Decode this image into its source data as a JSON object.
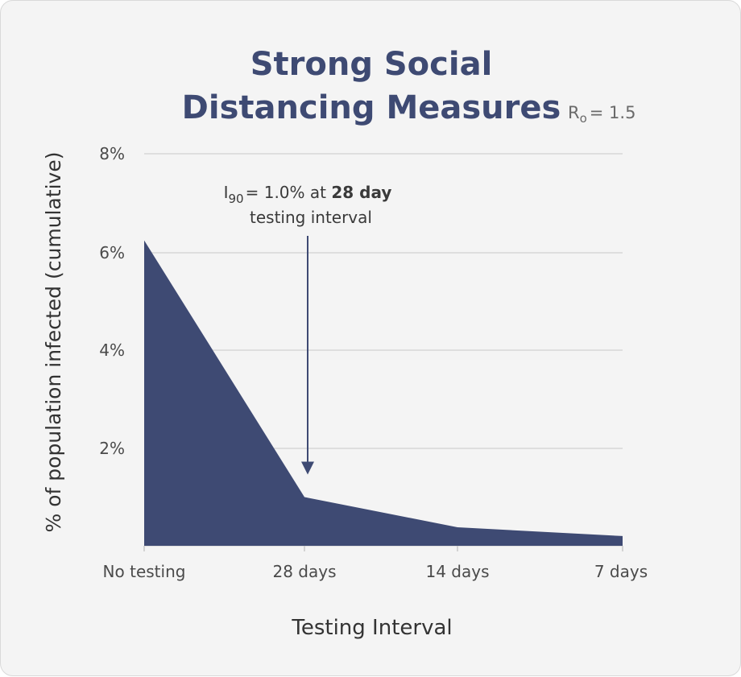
{
  "chart_data": {
    "type": "area",
    "title_line1": "Strong Social",
    "title_line2": "Distancing Measures",
    "r0_symbol": "R",
    "r0_sub": "o",
    "r0_value": "= 1.5",
    "xlabel": "Testing Interval",
    "ylabel": "% of population infected (cumulative)",
    "categories": [
      "No testing",
      "28 days",
      "14 days",
      "7 days"
    ],
    "values": [
      6.25,
      1.0,
      0.38,
      0.2
    ],
    "ylim": [
      0,
      8
    ],
    "yticks": [
      {
        "value": 2,
        "label": "2%"
      },
      {
        "value": 4,
        "label": "4%"
      },
      {
        "value": 6,
        "label": "6%"
      },
      {
        "value": 8,
        "label": "8%"
      }
    ],
    "grid": true,
    "fill_color": "#3e4a73",
    "annotation": {
      "symbol": "I",
      "sub": "90",
      "value_text": "= 1.0% at ",
      "bold_text": "28 day",
      "line2": "testing interval",
      "category_index": 1
    }
  }
}
